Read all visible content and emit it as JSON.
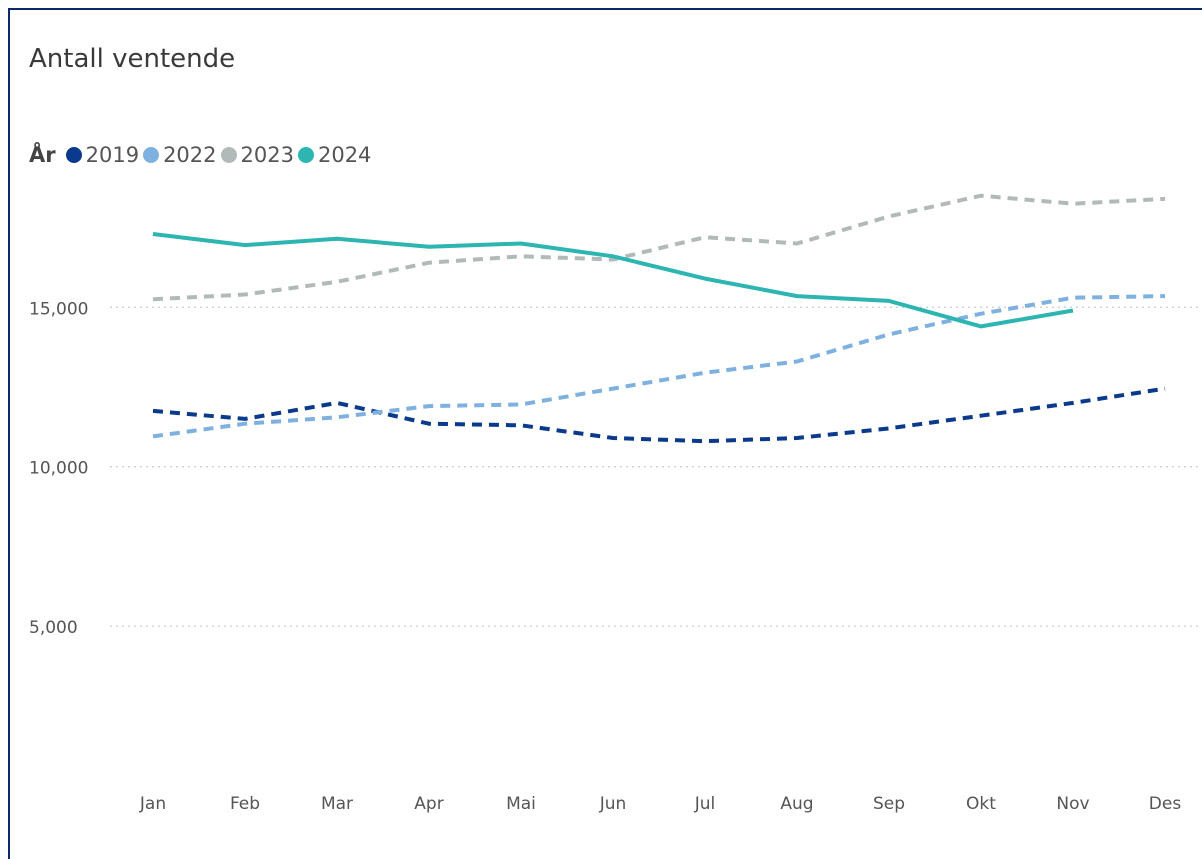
{
  "chart_data": {
    "type": "line",
    "title": "Antall ventende",
    "legend_title": "År",
    "legend_position": "top-left",
    "categories": [
      "Jan",
      "Feb",
      "Mar",
      "Apr",
      "Mai",
      "Jun",
      "Jul",
      "Aug",
      "Sep",
      "Okt",
      "Nov",
      "Des"
    ],
    "ylim": [
      0,
      20000
    ],
    "y_ticks": [
      5000,
      10000,
      15000
    ],
    "y_tick_labels": [
      "5,000",
      "10,000",
      "15,000"
    ],
    "grid": true,
    "series": [
      {
        "name": "2019",
        "color": "#0b3a8c",
        "style": "dashed",
        "values": [
          11750,
          11500,
          12000,
          11350,
          11300,
          10900,
          10800,
          10900,
          11200,
          11600,
          12000,
          12450
        ]
      },
      {
        "name": "2022",
        "color": "#7fb1e0",
        "style": "dashed",
        "values": [
          10950,
          11350,
          11550,
          11900,
          11950,
          12450,
          12950,
          13300,
          14150,
          14800,
          15300,
          15350
        ]
      },
      {
        "name": "2023",
        "color": "#b2bab9",
        "style": "dashed",
        "values": [
          15250,
          15400,
          15800,
          16400,
          16600,
          16500,
          17200,
          17000,
          17850,
          18500,
          18250,
          18400
        ]
      },
      {
        "name": "2024",
        "color": "#2db5b2",
        "style": "solid",
        "values": [
          17300,
          16950,
          17150,
          16900,
          17000,
          16600,
          15900,
          15350,
          15200,
          14400,
          14900,
          null
        ]
      }
    ]
  }
}
